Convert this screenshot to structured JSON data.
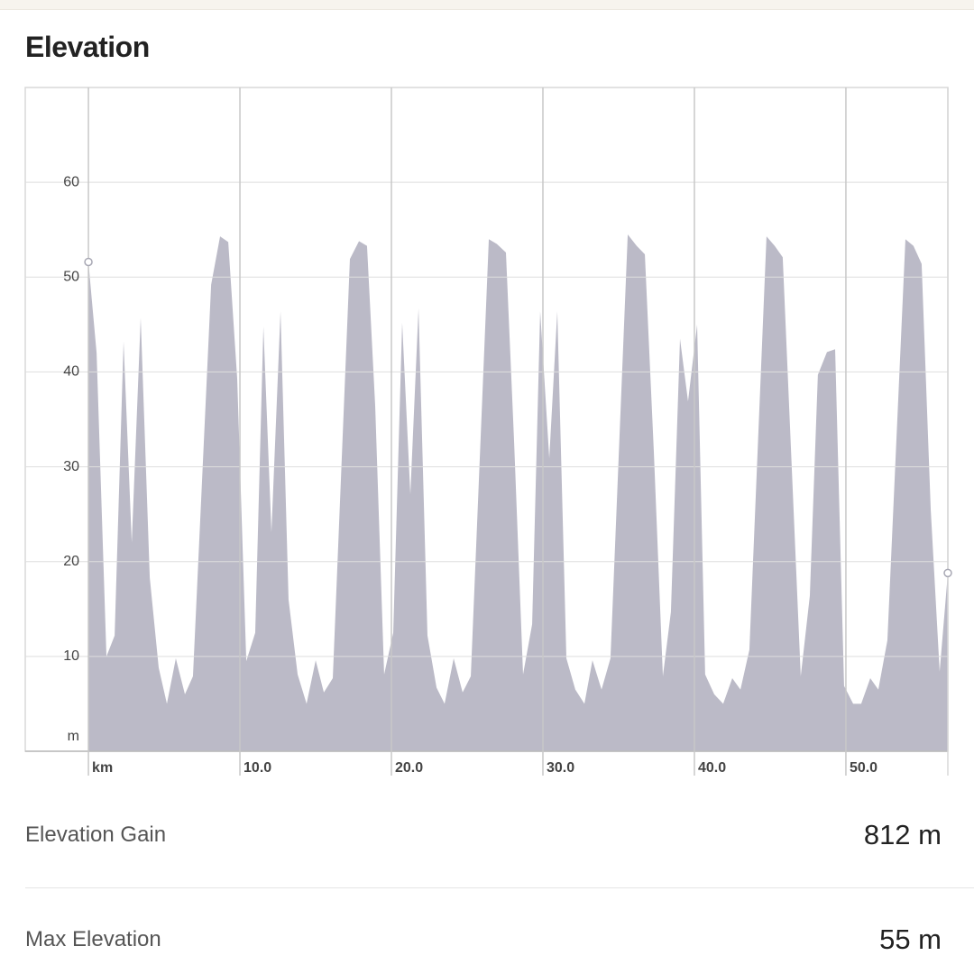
{
  "title": "Elevation",
  "chart_data": {
    "type": "area",
    "color": "#bbbac7",
    "grid": true,
    "xlim": [
      -4.17,
      56.73
    ],
    "ylim": [
      0,
      70
    ],
    "xticks": [
      {
        "value": 0,
        "label": "km"
      },
      {
        "value": 10,
        "label": "10.0"
      },
      {
        "value": 20,
        "label": "20.0"
      },
      {
        "value": 30,
        "label": "30.0"
      },
      {
        "value": 40,
        "label": "40.0"
      },
      {
        "value": 50,
        "label": "50.0"
      }
    ],
    "yticks": [
      {
        "value": 0,
        "label": "m"
      },
      10,
      20,
      30,
      40,
      50,
      60
    ],
    "x": [
      0,
      0.54,
      1.19,
      1.73,
      2.32,
      2.86,
      3.45,
      4.05,
      4.64,
      5.18,
      5.77,
      6.37,
      6.9,
      8.1,
      8.69,
      9.23,
      9.82,
      10.42,
      11.01,
      11.55,
      12.08,
      12.68,
      13.21,
      13.81,
      14.4,
      15,
      15.54,
      16.13,
      17.26,
      17.86,
      18.39,
      18.93,
      19.52,
      20.12,
      20.71,
      21.25,
      21.79,
      22.38,
      22.98,
      23.51,
      24.11,
      24.7,
      25.24,
      26.43,
      26.96,
      27.56,
      28.1,
      28.69,
      29.29,
      29.82,
      30.42,
      30.95,
      31.55,
      32.14,
      32.74,
      33.27,
      33.87,
      34.46,
      35.6,
      36.19,
      36.73,
      37.32,
      37.92,
      38.45,
      39.05,
      39.58,
      40.18,
      40.71,
      41.31,
      41.9,
      42.5,
      43.04,
      43.63,
      44.76,
      45.3,
      45.83,
      47.02,
      47.62,
      48.15,
      48.75,
      49.29,
      49.88,
      50.48,
      51.01,
      51.61,
      52.14,
      52.74,
      53.93,
      54.46,
      55,
      55.6,
      56.19,
      56.73
    ],
    "values": [
      51.6,
      42,
      10,
      12.2,
      43.2,
      22,
      45.7,
      18.3,
      8.8,
      5,
      9.8,
      6,
      7.9,
      49.2,
      54.3,
      53.7,
      39.3,
      9.5,
      12.5,
      44.8,
      23.1,
      46.4,
      16,
      8.1,
      5,
      9.6,
      6.2,
      7.7,
      51.9,
      53.8,
      53.3,
      36.4,
      8.1,
      12.5,
      45.2,
      27.1,
      46.7,
      12.2,
      6.7,
      5,
      9.8,
      6.2,
      7.9,
      54,
      53.5,
      52.6,
      32.6,
      8.1,
      13.4,
      46.4,
      30.9,
      46.4,
      9.8,
      6.5,
      5,
      9.6,
      6.5,
      9.8,
      54.5,
      53.3,
      52.4,
      31.7,
      7.9,
      14.7,
      43.5,
      36.9,
      45,
      8.1,
      6,
      5,
      7.7,
      6.5,
      10.7,
      54.3,
      53.3,
      52.1,
      7.9,
      16.4,
      39.7,
      42.1,
      42.4,
      6.9,
      5,
      5,
      7.7,
      6.5,
      11.7,
      54,
      53.3,
      51.4,
      25.5,
      8.4,
      18.8
    ]
  },
  "stats": [
    {
      "label": "Elevation Gain",
      "value": "812 m"
    },
    {
      "label": "Max Elevation",
      "value": "55 m"
    }
  ]
}
